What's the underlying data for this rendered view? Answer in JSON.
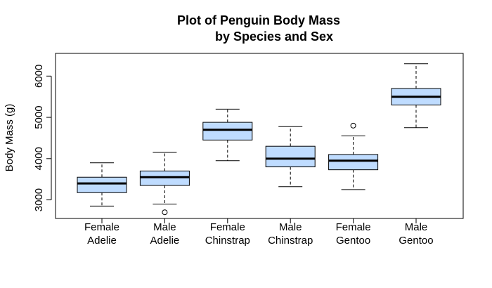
{
  "chart_data": {
    "type": "boxplot",
    "title_line1": "Plot of Penguin Body Mass",
    "title_line2": "by Species and Sex",
    "xlabel": "",
    "ylabel": "Body Mass (g)",
    "ylim": [
      2550,
      6550
    ],
    "yticks": [
      3000,
      4000,
      5000,
      6000
    ],
    "ytick_labels": [
      "3000",
      "4000",
      "5000",
      "6000"
    ],
    "box_fill": "#bfdcff",
    "grid": false,
    "categories": [
      {
        "line1": "Female",
        "line2": "Adelie",
        "whisker_low": 2850,
        "q1": 3175,
        "median": 3400,
        "q3": 3550,
        "whisker_high": 3900,
        "outliers": []
      },
      {
        "line1": "Male",
        "line2": "Adelie",
        "whisker_low": 2900,
        "q1": 3350,
        "median": 3550,
        "q3": 3700,
        "whisker_high": 4150,
        "outliers": [
          2700
        ]
      },
      {
        "line1": "Female",
        "line2": "Chinstrap",
        "whisker_low": 3950,
        "q1": 4450,
        "median": 4700,
        "q3": 4880,
        "whisker_high": 5200,
        "outliers": []
      },
      {
        "line1": "Male",
        "line2": "Chinstrap",
        "whisker_low": 3320,
        "q1": 3800,
        "median": 4000,
        "q3": 4300,
        "whisker_high": 4775,
        "outliers": []
      },
      {
        "line1": "Female",
        "line2": "Gentoo",
        "whisker_low": 3250,
        "q1": 3730,
        "median": 3950,
        "q3": 4100,
        "whisker_high": 4550,
        "outliers": [
          4800
        ]
      },
      {
        "line1": "Male",
        "line2": "Gentoo",
        "whisker_low": 4750,
        "q1": 5300,
        "median": 5500,
        "q3": 5700,
        "whisker_high": 6300,
        "outliers": []
      }
    ]
  }
}
